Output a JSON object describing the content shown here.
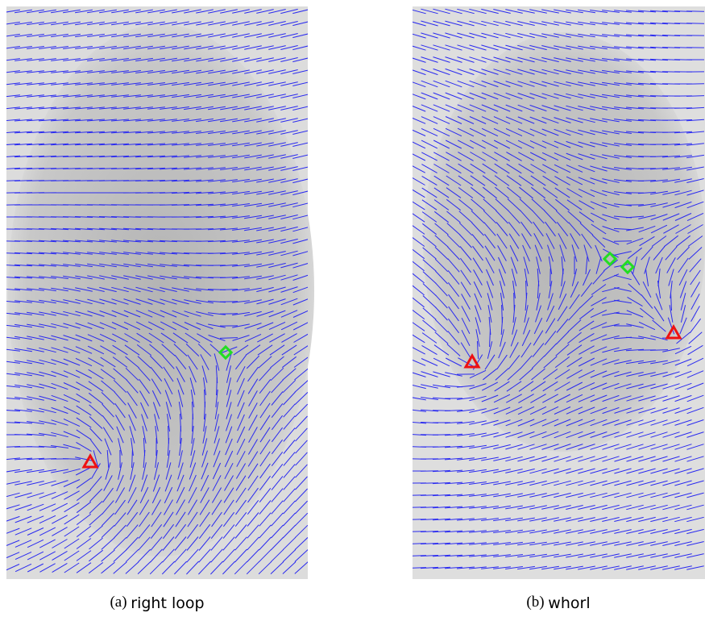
{
  "panels": [
    {
      "label": "(a)",
      "caption": "right loop"
    },
    {
      "label": "(b)",
      "caption": "whorl"
    }
  ]
}
